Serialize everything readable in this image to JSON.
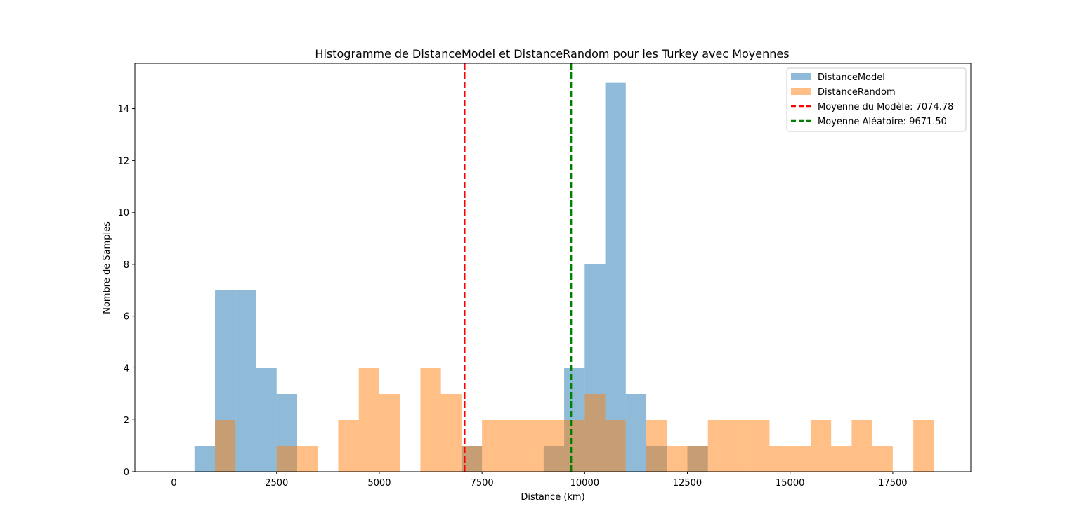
{
  "chart_data": {
    "type": "bar",
    "title": "Histogramme de DistanceModel et DistanceRandom pour les Turkey avec Moyennes",
    "xlabel": "Distance (km)",
    "ylabel": "Nombre de Samples",
    "xlim": [
      -950,
      19400
    ],
    "ylim": [
      0,
      15.75
    ],
    "bin_width": 500,
    "xticks": [
      0,
      2500,
      5000,
      7500,
      10000,
      12500,
      15000,
      17500
    ],
    "xtick_labels": [
      "0",
      "2500",
      "5000",
      "7500",
      "10000",
      "12500",
      "15000",
      "17500"
    ],
    "yticks": [
      0,
      2,
      4,
      6,
      8,
      10,
      12,
      14
    ],
    "ytick_labels": [
      "0",
      "2",
      "4",
      "6",
      "8",
      "10",
      "12",
      "14"
    ],
    "grid": false,
    "legend_position": "top-right",
    "series": [
      {
        "name": "DistanceModel",
        "color": "#1f77b4",
        "alpha": 0.5,
        "bins": [
          {
            "start": 500,
            "end": 1000,
            "count": 1
          },
          {
            "start": 1000,
            "end": 1500,
            "count": 7
          },
          {
            "start": 1500,
            "end": 2000,
            "count": 7
          },
          {
            "start": 2000,
            "end": 2500,
            "count": 4
          },
          {
            "start": 2500,
            "end": 3000,
            "count": 3
          },
          {
            "start": 7000,
            "end": 7500,
            "count": 1
          },
          {
            "start": 9000,
            "end": 9500,
            "count": 1
          },
          {
            "start": 9500,
            "end": 10000,
            "count": 4
          },
          {
            "start": 10000,
            "end": 10500,
            "count": 8
          },
          {
            "start": 10500,
            "end": 11000,
            "count": 15
          },
          {
            "start": 11000,
            "end": 11500,
            "count": 3
          },
          {
            "start": 11500,
            "end": 12000,
            "count": 1
          },
          {
            "start": 12500,
            "end": 13000,
            "count": 1
          }
        ]
      },
      {
        "name": "DistanceRandom",
        "color": "#ff7f0e",
        "alpha": 0.5,
        "bins": [
          {
            "start": 1000,
            "end": 1500,
            "count": 2
          },
          {
            "start": 2500,
            "end": 3000,
            "count": 1
          },
          {
            "start": 3000,
            "end": 3500,
            "count": 1
          },
          {
            "start": 4000,
            "end": 4500,
            "count": 2
          },
          {
            "start": 4500,
            "end": 5000,
            "count": 4
          },
          {
            "start": 5000,
            "end": 5500,
            "count": 3
          },
          {
            "start": 6000,
            "end": 6500,
            "count": 4
          },
          {
            "start": 6500,
            "end": 7000,
            "count": 3
          },
          {
            "start": 7000,
            "end": 7500,
            "count": 1
          },
          {
            "start": 7500,
            "end": 8000,
            "count": 2
          },
          {
            "start": 8000,
            "end": 8500,
            "count": 2
          },
          {
            "start": 8500,
            "end": 9000,
            "count": 2
          },
          {
            "start": 9000,
            "end": 9500,
            "count": 2
          },
          {
            "start": 9500,
            "end": 10000,
            "count": 2
          },
          {
            "start": 10000,
            "end": 10500,
            "count": 3
          },
          {
            "start": 10500,
            "end": 11000,
            "count": 2
          },
          {
            "start": 11500,
            "end": 12000,
            "count": 2
          },
          {
            "start": 12000,
            "end": 12500,
            "count": 1
          },
          {
            "start": 12500,
            "end": 13000,
            "count": 1
          },
          {
            "start": 13000,
            "end": 13500,
            "count": 2
          },
          {
            "start": 13500,
            "end": 14000,
            "count": 2
          },
          {
            "start": 14000,
            "end": 14500,
            "count": 2
          },
          {
            "start": 14500,
            "end": 15000,
            "count": 1
          },
          {
            "start": 15000,
            "end": 15500,
            "count": 1
          },
          {
            "start": 15500,
            "end": 16000,
            "count": 2
          },
          {
            "start": 16000,
            "end": 16500,
            "count": 1
          },
          {
            "start": 16500,
            "end": 17000,
            "count": 2
          },
          {
            "start": 17000,
            "end": 17500,
            "count": 1
          },
          {
            "start": 18000,
            "end": 18500,
            "count": 2
          }
        ]
      }
    ],
    "mean_lines": [
      {
        "label": "Moyenne du Modèle: 7074.78",
        "value": 7074.78,
        "color": "#ff0000",
        "dash": "dashed"
      },
      {
        "label": "Moyenne Aléatoire: 9671.50",
        "value": 9671.5,
        "color": "#008000",
        "dash": "dashed"
      }
    ]
  }
}
